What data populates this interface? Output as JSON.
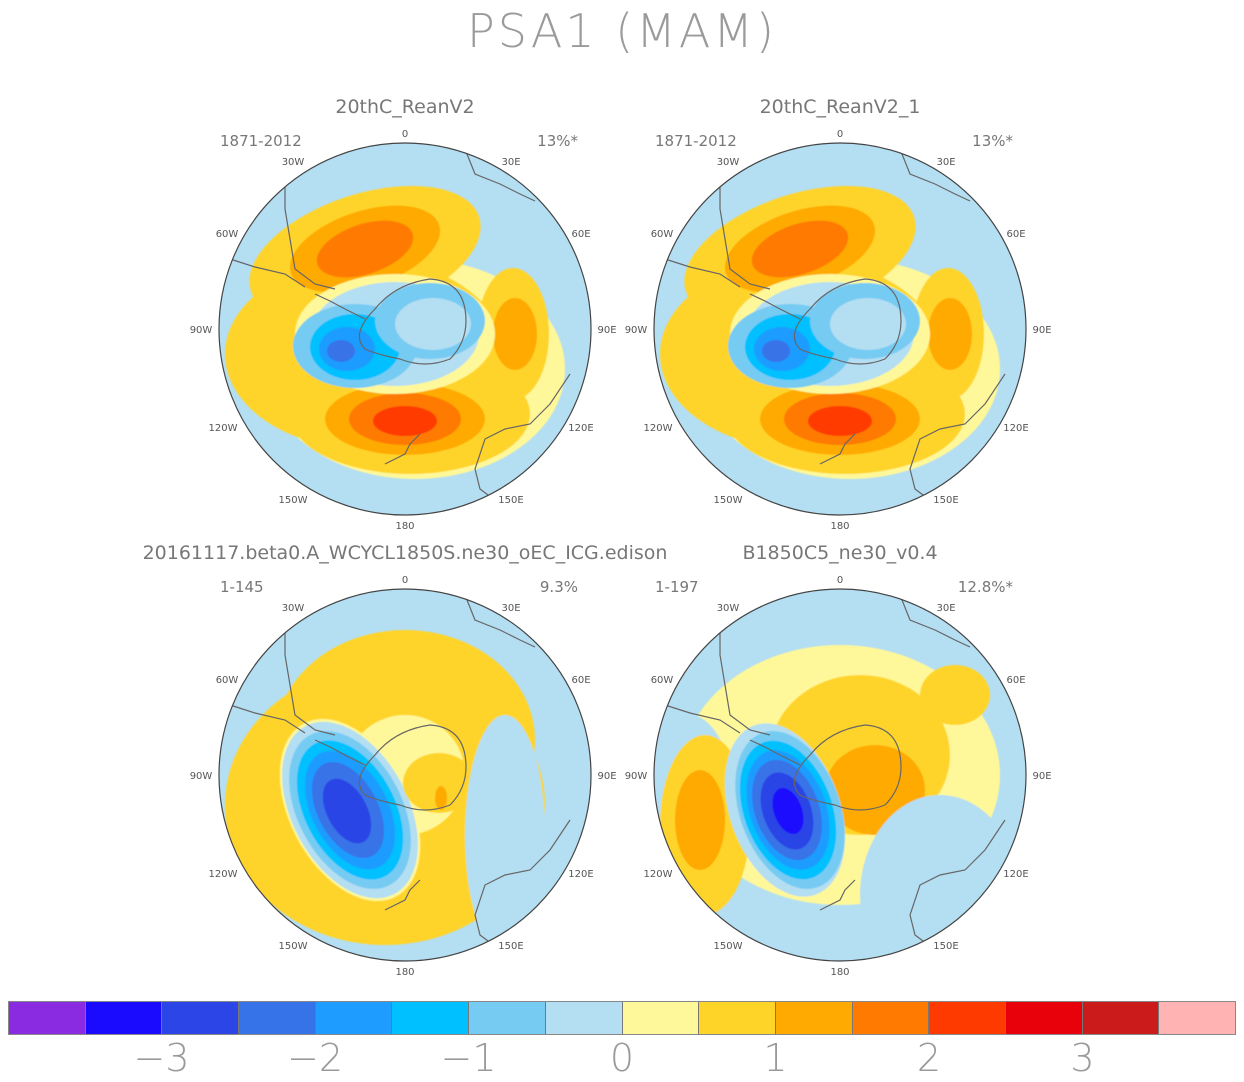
{
  "figure": {
    "title": "PSA1 (MAM)"
  },
  "panels": [
    {
      "title": "20thC_ReanV2",
      "years": "1871-2012",
      "pct": "13%*",
      "pattern": "A"
    },
    {
      "title": "20thC_ReanV2_1",
      "years": "1871-2012",
      "pct": "13%*",
      "pattern": "A"
    },
    {
      "title": "20161117.beta0.A_WCYCL1850S.ne30_oEC_ICG.edison",
      "years": "1-145",
      "pct": "9.3%",
      "pattern": "B"
    },
    {
      "title": "B1850C5_ne30_v0.4",
      "years": "1-197",
      "pct": "12.8%*",
      "pattern": "C"
    }
  ],
  "longitude_labels": {
    "lon0": "0",
    "lon30e": "30E",
    "lon60e": "60E",
    "lon90e": "90E",
    "lon120e": "120E",
    "lon150e": "150E",
    "lon180": "180",
    "lon150w": "150W",
    "lon120w": "120W",
    "lon90w": "90W",
    "lon60w": "60W",
    "lon30w": "30W"
  },
  "colorbar": {
    "colors": [
      "#8a2be2",
      "#1a0bff",
      "#2c45e6",
      "#3773e8",
      "#1e9cff",
      "#00c0ff",
      "#76cbf3",
      "#b4def2",
      "#fff89a",
      "#ffd429",
      "#ffaa00",
      "#ff7a00",
      "#ff3a00",
      "#e8000b",
      "#cc1b1b",
      "#ffb3b3"
    ],
    "ticks": [
      "−3",
      "−2",
      "−1",
      "0",
      "1",
      "2",
      "3"
    ],
    "tick_values": [
      -3,
      -2,
      -1,
      0,
      1,
      2,
      3
    ]
  }
}
